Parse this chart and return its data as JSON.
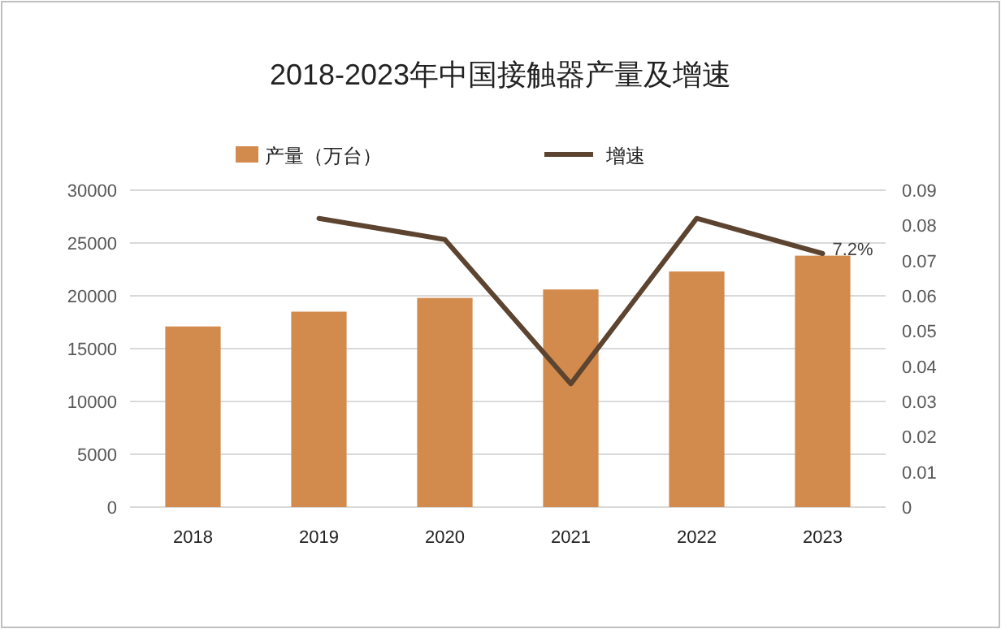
{
  "chart_data": {
    "type": "bar",
    "title": "2018-2023年中国接触器产量及增速",
    "categories": [
      "2018",
      "2019",
      "2020",
      "2021",
      "2022",
      "2023"
    ],
    "series": [
      {
        "name": "产量（万台）",
        "color": "#d38b4d",
        "values": [
          17100,
          18500,
          19800,
          20600,
          22300,
          23800
        ]
      },
      {
        "name": "增速",
        "type": "line",
        "axis": "y2",
        "color": "#5c4430",
        "values": [
          null,
          0.082,
          0.076,
          0.035,
          0.082,
          0.072
        ],
        "value_labels": [
          null,
          null,
          null,
          null,
          null,
          "7.2%"
        ]
      }
    ],
    "ylim": [
      0,
      30000
    ],
    "yticks": [
      0,
      5000,
      10000,
      15000,
      20000,
      25000,
      30000
    ],
    "y2lim": [
      0,
      0.09
    ],
    "y2ticks": [
      0,
      0.01,
      0.02,
      0.03,
      0.04,
      0.05,
      0.06,
      0.07,
      0.08,
      0.09
    ],
    "grid": "y",
    "legend": "top",
    "marker": "none",
    "line_style": "solid"
  }
}
